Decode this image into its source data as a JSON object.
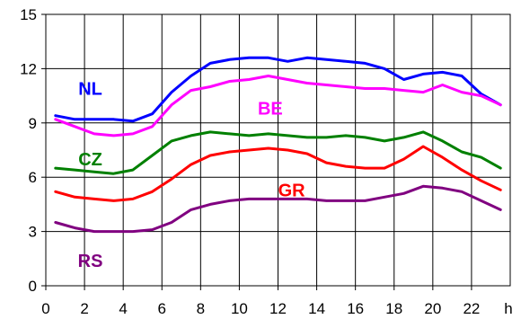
{
  "chart_data": {
    "type": "line",
    "title": "",
    "xlabel": "h",
    "ylabel": "",
    "xlim": [
      0,
      24
    ],
    "ylim": [
      0,
      15
    ],
    "x_ticks": [
      "0",
      "2",
      "4",
      "6",
      "8",
      "10",
      "12",
      "14",
      "16",
      "18",
      "20",
      "22"
    ],
    "y_ticks": [
      "0",
      "3",
      "6",
      "9",
      "12",
      "15"
    ],
    "grid": true,
    "legend": "labels placed next to each series",
    "x": [
      0.5,
      1.5,
      2.5,
      3.5,
      4.5,
      5.5,
      6.5,
      7.5,
      8.5,
      9.5,
      10.5,
      11.5,
      12.5,
      13.5,
      14.5,
      15.5,
      16.5,
      17.5,
      18.5,
      19.5,
      20.5,
      21.5,
      22.5,
      23.5
    ],
    "series": [
      {
        "name": "NL",
        "color": "#0000ff",
        "label_at": [
          2.3,
          10.9
        ],
        "values": [
          9.4,
          9.2,
          9.2,
          9.2,
          9.1,
          9.5,
          10.7,
          11.6,
          12.3,
          12.5,
          12.6,
          12.6,
          12.4,
          12.6,
          12.5,
          12.4,
          12.3,
          12.0,
          11.4,
          11.7,
          11.8,
          11.6,
          10.6,
          10.0
        ]
      },
      {
        "name": "BE",
        "color": "#ff00ff",
        "label_at": [
          11.6,
          9.8
        ],
        "values": [
          9.2,
          8.8,
          8.4,
          8.3,
          8.4,
          8.8,
          10.0,
          10.8,
          11.0,
          11.3,
          11.4,
          11.6,
          11.4,
          11.2,
          11.1,
          11.0,
          10.9,
          10.9,
          10.8,
          10.7,
          11.1,
          10.7,
          10.5,
          10.0
        ]
      },
      {
        "name": "CZ",
        "color": "#008000",
        "label_at": [
          2.3,
          7.0
        ],
        "values": [
          6.5,
          6.4,
          6.3,
          6.2,
          6.4,
          7.2,
          8.0,
          8.3,
          8.5,
          8.4,
          8.3,
          8.4,
          8.3,
          8.2,
          8.2,
          8.3,
          8.2,
          8.0,
          8.2,
          8.5,
          8.0,
          7.4,
          7.1,
          6.5
        ]
      },
      {
        "name": "GR",
        "color": "#ff0000",
        "label_at": [
          12.7,
          5.3
        ],
        "values": [
          5.2,
          4.9,
          4.8,
          4.7,
          4.8,
          5.2,
          5.9,
          6.7,
          7.2,
          7.4,
          7.5,
          7.6,
          7.5,
          7.3,
          6.8,
          6.6,
          6.5,
          6.5,
          7.0,
          7.7,
          7.1,
          6.4,
          5.8,
          5.3
        ]
      },
      {
        "name": "RS",
        "color": "#800080",
        "label_at": [
          2.3,
          1.4
        ],
        "values": [
          3.5,
          3.2,
          3.0,
          3.0,
          3.0,
          3.1,
          3.5,
          4.2,
          4.5,
          4.7,
          4.8,
          4.8,
          4.8,
          4.8,
          4.7,
          4.7,
          4.7,
          4.9,
          5.1,
          5.5,
          5.4,
          5.2,
          4.7,
          4.2
        ]
      }
    ]
  }
}
